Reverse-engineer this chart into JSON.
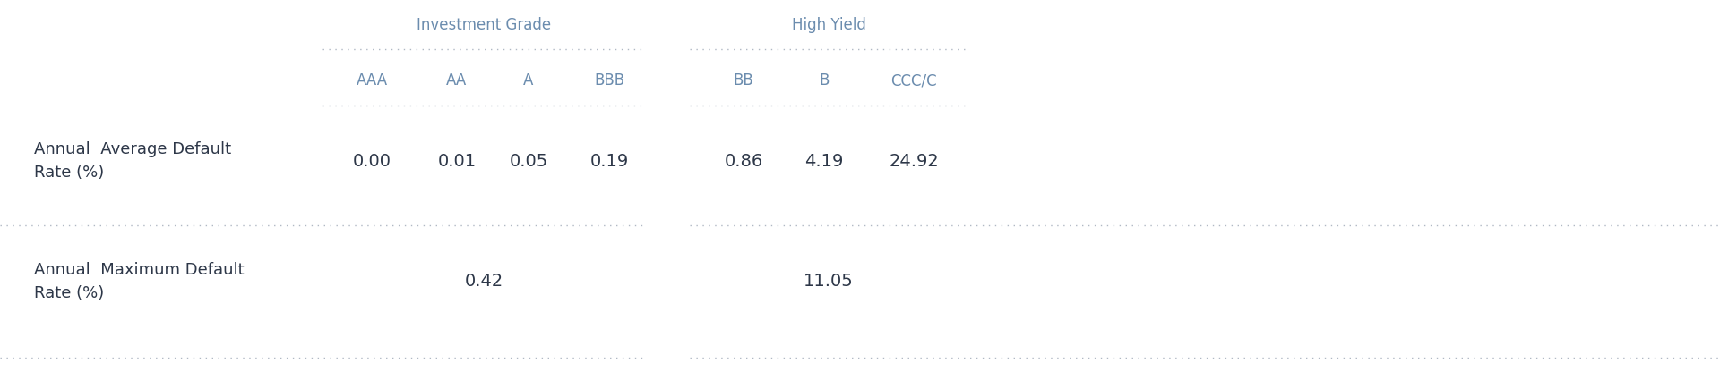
{
  "title_left": "Investment Grade",
  "title_right": "High Yield",
  "title_color": "#6b8cae",
  "col_headers": [
    "AAA",
    "AA",
    "A",
    "BBB",
    "BB",
    "B",
    "CCC/C"
  ],
  "col_header_color": "#6b8cae",
  "row_labels": [
    "Annual  Average Default\nRate (%)",
    "Annual  Maximum Default\nRate (%)"
  ],
  "row_label_color": "#2d3748",
  "row1_values": [
    "0.00",
    "0.01",
    "0.05",
    "0.19",
    "0.86",
    "4.19",
    "24.92"
  ],
  "row2_left_value": "0.42",
  "row2_right_value": "11.05",
  "value_color": "#2d3748",
  "line_color": "#b0b8c4",
  "bg_color": "#ffffff",
  "fig_width": 19.2,
  "fig_height": 4.25,
  "dpi": 100,
  "col_header_fontsize": 12,
  "group_header_fontsize": 12,
  "row_label_fontsize": 13,
  "value_fontsize": 14
}
